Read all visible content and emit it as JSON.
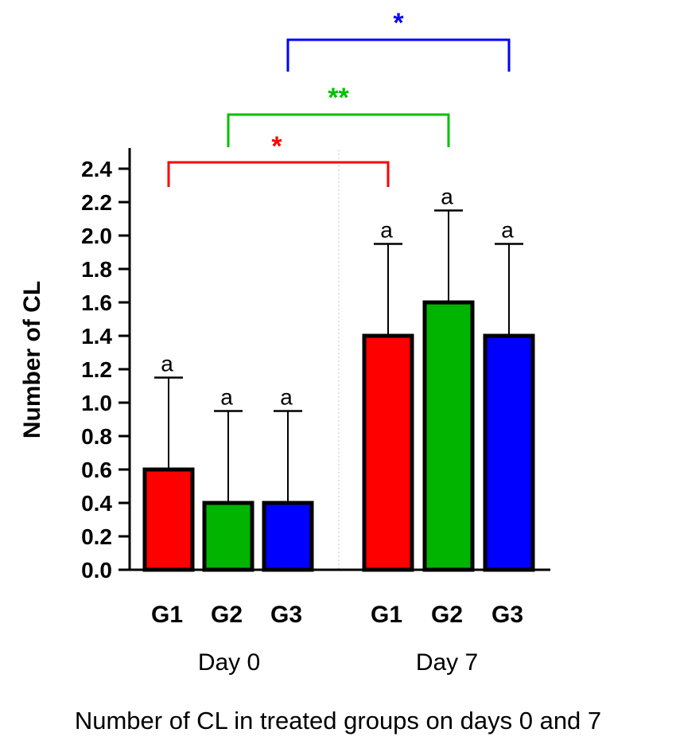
{
  "chart_data": {
    "type": "bar",
    "ylabel": "Number of CL",
    "ylim": [
      0,
      2.5
    ],
    "yticks": [
      "0.0",
      "0.2",
      "0.4",
      "0.6",
      "0.8",
      "1.0",
      "1.2",
      "1.4",
      "1.6",
      "1.8",
      "2.0",
      "2.2",
      "2.4"
    ],
    "groups": [
      {
        "label": "Day 0",
        "bars": [
          {
            "category": "G1",
            "value": 0.6,
            "error": 0.55,
            "color": "#ff0000",
            "letter": "a"
          },
          {
            "category": "G2",
            "value": 0.4,
            "error": 0.55,
            "color": "#00b400",
            "letter": "a"
          },
          {
            "category": "G3",
            "value": 0.4,
            "error": 0.55,
            "color": "#0000ff",
            "letter": "a"
          }
        ]
      },
      {
        "label": "Day 7",
        "bars": [
          {
            "category": "G1",
            "value": 1.4,
            "error": 0.55,
            "color": "#ff0000",
            "letter": "a"
          },
          {
            "category": "G2",
            "value": 1.6,
            "error": 0.55,
            "color": "#00b400",
            "letter": "a"
          },
          {
            "category": "G3",
            "value": 1.4,
            "error": 0.55,
            "color": "#0000ff",
            "letter": "a"
          }
        ]
      }
    ],
    "comparisons": [
      {
        "from": "Day 0 G1",
        "to": "Day 7 G1",
        "label": "*",
        "color": "#ff0000"
      },
      {
        "from": "Day 0 G2",
        "to": "Day 7 G2",
        "label": "**",
        "color": "#00c000"
      },
      {
        "from": "Day 0 G3",
        "to": "Day 7 G3",
        "label": "*",
        "color": "#0000ff"
      }
    ]
  },
  "caption": "Number of CL in treated groups on days 0 and 7"
}
